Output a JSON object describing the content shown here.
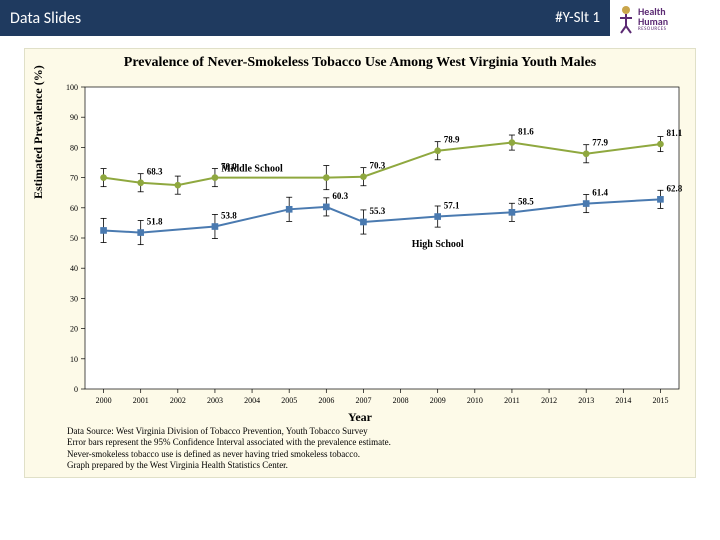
{
  "header": {
    "left": "Data Slides",
    "right": "#Y-Slt 1"
  },
  "logo": {
    "line1": "Health",
    "line2": "Human",
    "sub": "RESOURCES"
  },
  "chart": {
    "type": "line",
    "title": "Prevalence of Never-Smokeless Tobacco Use Among West Virginia Youth Males",
    "title_fontsize": 14,
    "title_font": "Times New Roman",
    "background_color": "#fdfae8",
    "xlabel": "Year",
    "ylabel": "Estimated Prevalence (%)",
    "label_fontsize": 12,
    "xlim": [
      1999.5,
      2015.5
    ],
    "ylim": [
      0,
      100
    ],
    "ytick_step": 10,
    "x_ticks": [
      2000,
      2001,
      2002,
      2003,
      2004,
      2005,
      2006,
      2007,
      2008,
      2009,
      2010,
      2011,
      2012,
      2013,
      2014,
      2015
    ],
    "tick_fontsize": 8,
    "grid_color": "#000000",
    "axis_color": "#000000",
    "series": [
      {
        "name": "Middle School",
        "color": "#8fa83f",
        "marker": "circle",
        "marker_size": 5,
        "line_width": 2,
        "label_pos": {
          "x": 2004,
          "y": 72
        },
        "points": [
          {
            "x": 2000,
            "y": 70.0,
            "label": null,
            "err": 3
          },
          {
            "x": 2001,
            "y": 68.3,
            "label": "68.3",
            "err": 3
          },
          {
            "x": 2002,
            "y": 67.5,
            "label": null,
            "err": 3
          },
          {
            "x": 2003,
            "y": 70.0,
            "label": "70.0",
            "err": 3
          },
          {
            "x": 2006,
            "y": 70.0,
            "label": null,
            "err": 4
          },
          {
            "x": 2007,
            "y": 70.3,
            "label": "70.3",
            "err": 3
          },
          {
            "x": 2009,
            "y": 78.9,
            "label": "78.9",
            "err": 3
          },
          {
            "x": 2011,
            "y": 81.6,
            "label": "81.6",
            "err": 2.5
          },
          {
            "x": 2013,
            "y": 77.9,
            "label": "77.9",
            "err": 3
          },
          {
            "x": 2015,
            "y": 81.1,
            "label": "81.1",
            "err": 2.5
          }
        ]
      },
      {
        "name": "High School",
        "color": "#4a7ab0",
        "marker": "square",
        "marker_size": 5,
        "line_width": 2,
        "label_pos": {
          "x": 2009,
          "y": 47
        },
        "points": [
          {
            "x": 2000,
            "y": 52.5,
            "label": null,
            "err": 4
          },
          {
            "x": 2001,
            "y": 51.8,
            "label": "51.8",
            "err": 4
          },
          {
            "x": 2003,
            "y": 53.8,
            "label": "53.8",
            "err": 4
          },
          {
            "x": 2005,
            "y": 59.5,
            "label": null,
            "err": 4
          },
          {
            "x": 2006,
            "y": 60.3,
            "label": "60.3",
            "err": 3
          },
          {
            "x": 2007,
            "y": 55.3,
            "label": "55.3",
            "err": 4
          },
          {
            "x": 2009,
            "y": 57.1,
            "label": "57.1",
            "err": 3.5
          },
          {
            "x": 2011,
            "y": 58.5,
            "label": "58.5",
            "err": 3
          },
          {
            "x": 2013,
            "y": 61.4,
            "label": "61.4",
            "err": 3
          },
          {
            "x": 2015,
            "y": 62.8,
            "label": "62.8",
            "err": 3
          }
        ]
      }
    ],
    "footnotes": [
      "Data Source: West Virginia  Division  of Tobacco Prevention,  Youth Tobacco Survey",
      "Error bars represent the 95% Confidence  Interval  associated  with the prevalence  estimate.",
      "Never-smokeless  tobacco use is defined  as never having  tried smokeless  tobacco.",
      "Graph prepared  by the West Virginia  Health Statistics  Center."
    ]
  }
}
